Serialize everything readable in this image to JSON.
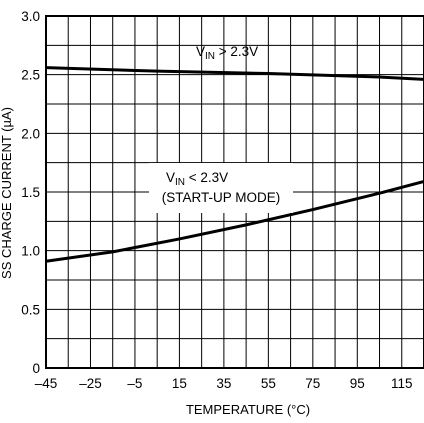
{
  "chart_data": {
    "type": "line",
    "xlabel": "TEMPERATURE (°C)",
    "ylabel": "SS CHARGE CURRENT (µA)",
    "xlim": [
      -45,
      125
    ],
    "ylim": [
      0,
      3.0
    ],
    "x_ticks": [
      "–45",
      "–25",
      "–5",
      "15",
      "35",
      "55",
      "75",
      "95",
      "115"
    ],
    "y_ticks": [
      "0",
      "0.5",
      "1.0",
      "1.5",
      "2.0",
      "2.5",
      "3.0"
    ],
    "grid": true,
    "series": [
      {
        "name": "VIN > 2.3V",
        "x": [
          -45,
          5,
          55,
          105,
          125
        ],
        "y": [
          2.56,
          2.53,
          2.51,
          2.48,
          2.46
        ]
      },
      {
        "name": "VIN < 2.3V (START-UP MODE)",
        "x": [
          -45,
          -15,
          15,
          45,
          75,
          105,
          125
        ],
        "y": [
          0.91,
          0.99,
          1.1,
          1.22,
          1.35,
          1.49,
          1.59
        ]
      }
    ],
    "annotations": [
      {
        "main": "V",
        "sub": "IN",
        "rest": " > 2.3V"
      },
      {
        "main": "V",
        "sub": "IN",
        "rest": " < 2.3V",
        "line2": "(START-UP MODE)"
      }
    ]
  }
}
